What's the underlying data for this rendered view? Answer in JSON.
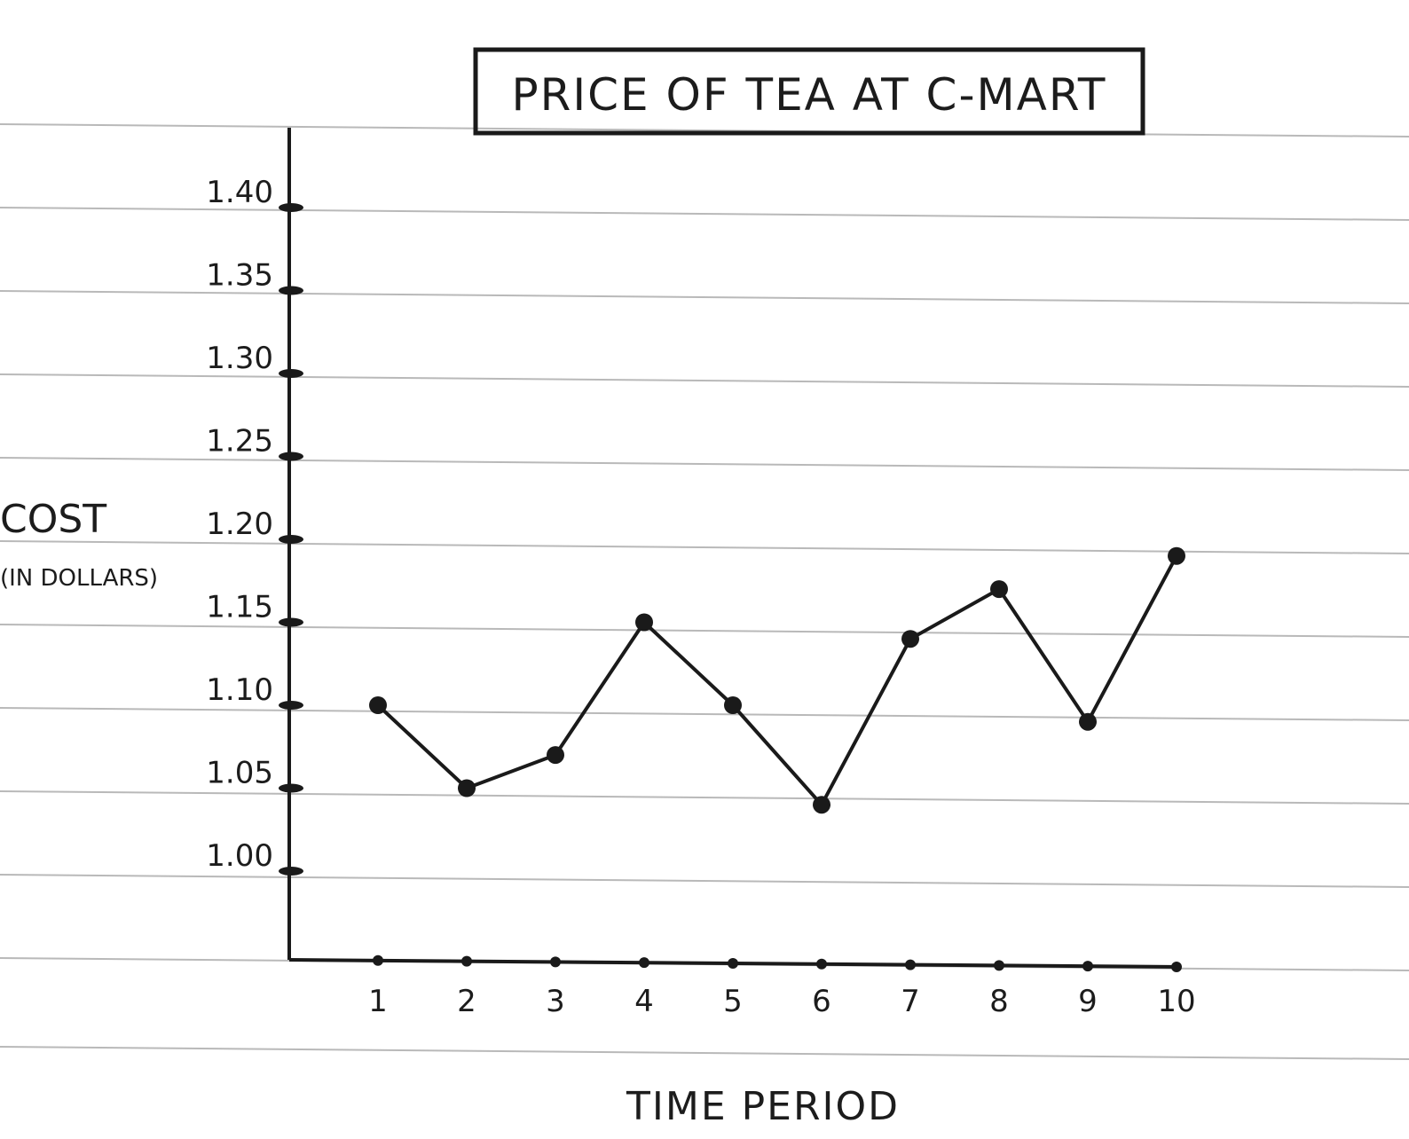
{
  "chart_data": {
    "type": "line",
    "title": "PRICE OF TEA AT C-MART",
    "xlabel": "TIME PERIOD",
    "ylabel": "COST",
    "ylabel_unit": "(IN DOLLARS)",
    "x": [
      1,
      2,
      3,
      4,
      5,
      6,
      7,
      8,
      9,
      10
    ],
    "x_tick_labels": [
      "1",
      "2",
      "3",
      "4",
      "5",
      "6",
      "7",
      "8",
      "9",
      "10"
    ],
    "y_ticks": [
      1.0,
      1.05,
      1.1,
      1.15,
      1.2,
      1.25,
      1.3,
      1.35,
      1.4
    ],
    "y_tick_labels": [
      "1.00",
      "1.05",
      "1.10",
      "1.15",
      "1.20",
      "1.25",
      "1.30",
      "1.35",
      "1.40"
    ],
    "series": [
      {
        "values": [
          1.1,
          1.05,
          1.07,
          1.15,
          1.1,
          1.04,
          1.14,
          1.17,
          1.09,
          1.19
        ]
      }
    ],
    "ylim": [
      0.95,
      1.45
    ],
    "xlim": [
      0,
      11
    ],
    "grid": true,
    "legend": "none",
    "colors": {
      "line": "#1a1a1a",
      "paper_line": "#b9b9b9",
      "background": "#ffffff"
    }
  }
}
